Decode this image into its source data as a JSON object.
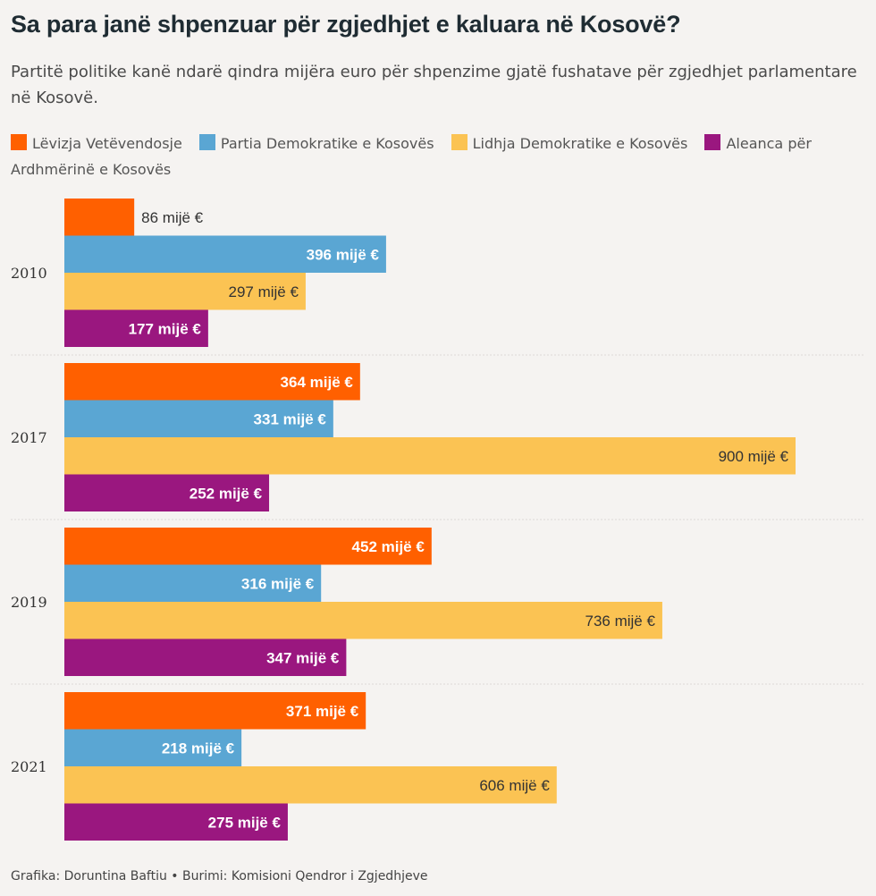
{
  "title": "Sa para janë shpenzuar për zgjedhjet e kaluara në Kosovë?",
  "subtitle": "Partitë politike kanë ndarë qindra mijëra euro për shpenzime gjatë fushatave për zgjedhjet parlamentare në Kosovë.",
  "legend": [
    {
      "label": "Lëvizja Vetëvendosje",
      "color": "#ff6000"
    },
    {
      "label": "Partia Demokratike e Kosovës",
      "color": "#5aa6d3"
    },
    {
      "label": "Lidhja Demokratike e Kosovës",
      "color": "#fbc353"
    },
    {
      "label": "Aleanca për Ardhmërinë e Kosovës",
      "color": "#9a177f"
    }
  ],
  "footer": "Grafika: Doruntina Baftiu • Burimi: Komisioni Qendror i Zgjedhjeve",
  "chart_data": {
    "type": "bar",
    "orientation": "horizontal",
    "unit": "mijë €",
    "categories": [
      "2010",
      "2017",
      "2019",
      "2021"
    ],
    "xlim": [
      0,
      900
    ],
    "series": [
      {
        "name": "Lëvizja Vetëvendosje",
        "color": "#ff6000",
        "values": [
          86,
          364,
          452,
          371
        ],
        "labels": [
          "86 mijë €",
          "364 mijë €",
          "452 mijë €",
          "371 mijë €"
        ]
      },
      {
        "name": "Partia Demokratike e Kosovës",
        "color": "#5aa6d3",
        "values": [
          396,
          331,
          316,
          218
        ],
        "labels": [
          "396 mijë €",
          "331 mijë €",
          "316 mijë €",
          "218 mijë €"
        ]
      },
      {
        "name": "Lidhja Demokratike e Kosovës",
        "color": "#fbc353",
        "values": [
          297,
          900,
          736,
          606
        ],
        "labels": [
          "297 mijë €",
          "900 mijë €",
          "736 mijë €",
          "606 mijë €"
        ]
      },
      {
        "name": "Aleanca për Ardhmërinë e Kosovës",
        "color": "#9a177f",
        "values": [
          177,
          252,
          347,
          275
        ],
        "labels": [
          "177 mijë €",
          "252 mijë €",
          "347 mijë €",
          "275 mijë €"
        ]
      }
    ]
  }
}
